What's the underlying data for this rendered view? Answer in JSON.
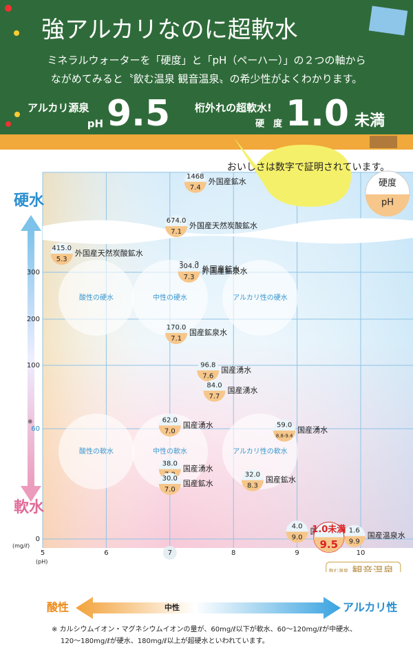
{
  "header": {
    "title": "強アルカリなのに超軟水",
    "subtitle_lines": [
      "ミネラルウォーターを「硬度」と「pH（ペーハー）」の２つの軸から",
      "ながめてみると〝飲む温泉 観音温泉〟の希少性がよくわかります。"
    ],
    "badge_left": {
      "label": "アルカリ源泉",
      "unit": "pH",
      "value": "9.5"
    },
    "badge_right": {
      "label": "桁外れの超軟水!",
      "unit": "硬　度",
      "value": "1.0",
      "suffix": "未満"
    }
  },
  "bubble": "おいしさは数字で証明されています。",
  "key": {
    "top": "硬度",
    "bottom": "pH"
  },
  "chart_data": {
    "type": "scatter",
    "y_label_top": "硬水",
    "y_label_bottom": "軟水",
    "y_unit": "(mg/ℓ)",
    "x_unit": "(pH)",
    "y_note": "※",
    "zones": [
      "酸性の硬水",
      "中性の硬水",
      "アルカリ性の硬水",
      "酸性の軟水",
      "中性の軟水",
      "アルカリ性の軟水"
    ],
    "names": [
      "外国産鉱水",
      "外国産天然炭酸鉱水",
      "外国産天然炭酸鉱水",
      "外国産鉱水",
      "外国産鉱泉水",
      "国産鉱泉水",
      "国産湧水",
      "国産湧水",
      "国産湧水",
      "国産湧水",
      "国産湧水",
      "国産鉱水",
      "国産鉱水",
      "国産温泉水",
      "国産温泉水",
      "観音温泉"
    ],
    "values": [
      1468,
      674,
      415,
      315,
      304,
      170,
      96.8,
      84,
      62,
      59,
      38,
      32,
      30,
      4,
      1.6,
      1.0
    ],
    "value_labels": [
      "1468",
      "674.0",
      "415.0",
      "315.0",
      "304.0",
      "170.0",
      "96.8",
      "84.0",
      "62.0",
      "59.0",
      "38.0",
      "32.0",
      "30.0",
      "4.0",
      "1.6",
      "1.0未満"
    ],
    "x": [
      7.4,
      7.1,
      5.3,
      7.3,
      7.3,
      7.1,
      7.6,
      7.7,
      7.0,
      8.8,
      7.0,
      8.3,
      7.0,
      9.0,
      9.9,
      9.5
    ],
    "x_labels": [
      "7.4",
      "7.1",
      "5.3",
      "7.3",
      "7.3",
      "7.1",
      "7.6",
      "7.7",
      "7.0",
      "8.8-9.4",
      "7.0",
      "8.3",
      "7.0",
      "9.0",
      "9.9",
      "9.5"
    ],
    "highlight_badge": "飲む温泉",
    "xlim": [
      5,
      10.8
    ],
    "ylim": [
      0,
      1500
    ],
    "xticks": [
      5,
      6,
      7,
      8,
      9,
      10
    ],
    "yticks": [
      0,
      60,
      100,
      200,
      300
    ],
    "x_axis_arrow": {
      "left": "酸性",
      "middle": "中性",
      "right": "アルカリ性"
    }
  },
  "footnote_lines": [
    "※ カルシウムイオン・マグネシウムイオンの量が、60mg/ℓ以下が軟水、60〜120mg/ℓが中硬水、",
    "120〜180mg/ℓが硬水、180mg/ℓ以上が超硬水といわれています。"
  ]
}
